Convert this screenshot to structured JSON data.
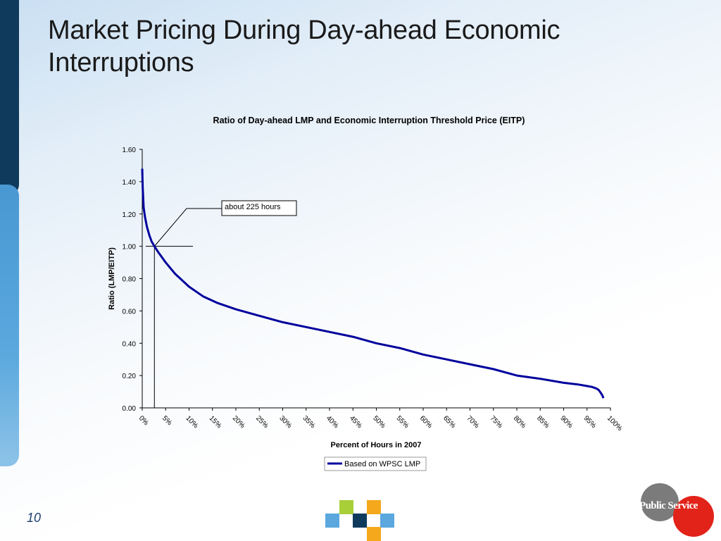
{
  "slide": {
    "title": "Market Pricing During Day-ahead Economic Interruptions",
    "page_number": "10",
    "logo_text": "Public Service"
  },
  "colors": {
    "series_line": "#00009c",
    "dark_bar": "#0f3a5c",
    "light_bar": "#4a98d2",
    "square_green": "#a8cf38",
    "square_orange": "#f5a81c",
    "square_blue": "#5aa8de",
    "square_navy": "#0f3a5c"
  },
  "chart_data": {
    "type": "line",
    "title": "Ratio of Day-ahead LMP and Economic Interruption Threshold Price (EITP)",
    "xlabel": "Percent of Hours in 2007",
    "ylabel": "Ratio (LMP/EITP)",
    "ylim": [
      0,
      1.6
    ],
    "xlim": [
      0,
      100
    ],
    "y_ticks": [
      "0.00",
      "0.20",
      "0.40",
      "0.60",
      "0.80",
      "1.00",
      "1.20",
      "1.40",
      "1.60"
    ],
    "x_ticks": [
      "0%",
      "5%",
      "10%",
      "15%",
      "20%",
      "25%",
      "30%",
      "35%",
      "40%",
      "45%",
      "50%",
      "55%",
      "60%",
      "65%",
      "70%",
      "75%",
      "80%",
      "85%",
      "90%",
      "95%",
      "100%"
    ],
    "grid": false,
    "legend_position": "bottom",
    "series": [
      {
        "name": "Based on WPSC LMP",
        "x": [
          0,
          0.1,
          0.3,
          0.6,
          1,
          1.5,
          2,
          2.6,
          3.5,
          5,
          7,
          10,
          13,
          16,
          20,
          25,
          30,
          35,
          40,
          45,
          50,
          55,
          60,
          65,
          70,
          75,
          80,
          85,
          90,
          93,
          95,
          96,
          97,
          97.5,
          98,
          98.3,
          98.5
        ],
        "values": [
          1.48,
          1.36,
          1.24,
          1.18,
          1.12,
          1.07,
          1.03,
          1.0,
          0.96,
          0.9,
          0.83,
          0.75,
          0.69,
          0.65,
          0.61,
          0.57,
          0.53,
          0.5,
          0.47,
          0.44,
          0.4,
          0.37,
          0.33,
          0.3,
          0.27,
          0.24,
          0.2,
          0.18,
          0.155,
          0.145,
          0.135,
          0.13,
          0.12,
          0.11,
          0.09,
          0.075,
          0.06
        ]
      }
    ],
    "annotation": {
      "text": "about 225 hours",
      "x_percent": 2.6,
      "y_value": 1.0
    }
  }
}
